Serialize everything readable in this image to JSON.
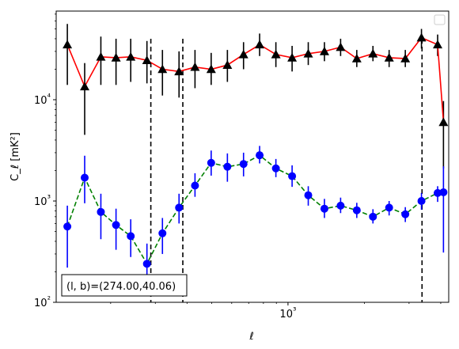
{
  "chart_data": {
    "type": "line",
    "xscale": "log",
    "yscale": "log",
    "xlabel": "ℓ",
    "ylabel": "C_ℓ  [mK²]",
    "xlim": [
      122,
      4300
    ],
    "ylim": [
      100,
      75000
    ],
    "x_ticks": [
      {
        "value": 1000,
        "label": "10³"
      }
    ],
    "y_ticks": [
      {
        "value": 100,
        "label": "10²"
      },
      {
        "value": 1000,
        "label": "10³"
      },
      {
        "value": 10000,
        "label": "10⁴"
      }
    ],
    "grid": false,
    "legend": {
      "location": "top-right",
      "entries": []
    },
    "annotation": "(l, b)=(274.00,40.06)",
    "vertical_lines": [
      288,
      385,
      3375
    ],
    "series": [
      {
        "color": "#ff0000",
        "marker_color": "#000000",
        "marker": "triangle",
        "linestyle": "solid",
        "errorbar_color": "#000000",
        "x": [
          135,
          158,
          183,
          210,
          240,
          278,
          320,
          372,
          430,
          498,
          577,
          668,
          773,
          896,
          1038,
          1202,
          1392,
          1612,
          1867,
          2162,
          2504,
          2900,
          3358,
          3889,
          4100
        ],
        "y": [
          35000,
          13500,
          26500,
          26000,
          26500,
          24500,
          20000,
          19000,
          21000,
          20000,
          22000,
          28000,
          35000,
          28000,
          26000,
          28500,
          30000,
          33000,
          25500,
          28500,
          26000,
          25500,
          41000,
          35000,
          6000
        ],
        "y_low": [
          14000,
          4500,
          14000,
          14000,
          15000,
          14500,
          11000,
          10500,
          13000,
          14000,
          15000,
          20000,
          27000,
          21000,
          19000,
          22000,
          24000,
          27000,
          21000,
          24000,
          21000,
          21000,
          32000,
          27000,
          2100
        ],
        "y_high": [
          56000,
          23000,
          42000,
          40000,
          40000,
          38000,
          31000,
          30000,
          31000,
          29000,
          31000,
          37000,
          45000,
          37000,
          34000,
          37000,
          37000,
          40000,
          31000,
          34000,
          31000,
          31000,
          50000,
          44000,
          9700
        ]
      },
      {
        "color": "#008000",
        "marker_color": "#0000ff",
        "marker": "circle",
        "linestyle": "dashed",
        "errorbar_color": "#0000ff",
        "x": [
          135,
          158,
          183,
          210,
          240,
          278,
          320,
          372,
          430,
          498,
          577,
          668,
          773,
          896,
          1038,
          1202,
          1392,
          1612,
          1867,
          2162,
          2504,
          2900,
          3358,
          3889,
          4100
        ],
        "y": [
          560,
          1700,
          780,
          580,
          450,
          240,
          480,
          860,
          1420,
          2380,
          2180,
          2320,
          2830,
          2100,
          1760,
          1140,
          840,
          900,
          810,
          700,
          860,
          740,
          1000,
          1200,
          1220
        ],
        "y_low": [
          220,
          950,
          420,
          330,
          280,
          150,
          300,
          600,
          1100,
          1780,
          1550,
          1750,
          2350,
          1720,
          1380,
          900,
          680,
          760,
          680,
          600,
          720,
          620,
          820,
          980,
          310
        ],
        "y_high": [
          900,
          2800,
          1180,
          840,
          660,
          380,
          680,
          1180,
          1880,
          3150,
          2950,
          3000,
          3500,
          2600,
          2250,
          1400,
          1050,
          1080,
          960,
          830,
          1000,
          870,
          1200,
          1400,
          2200
        ]
      }
    ]
  }
}
